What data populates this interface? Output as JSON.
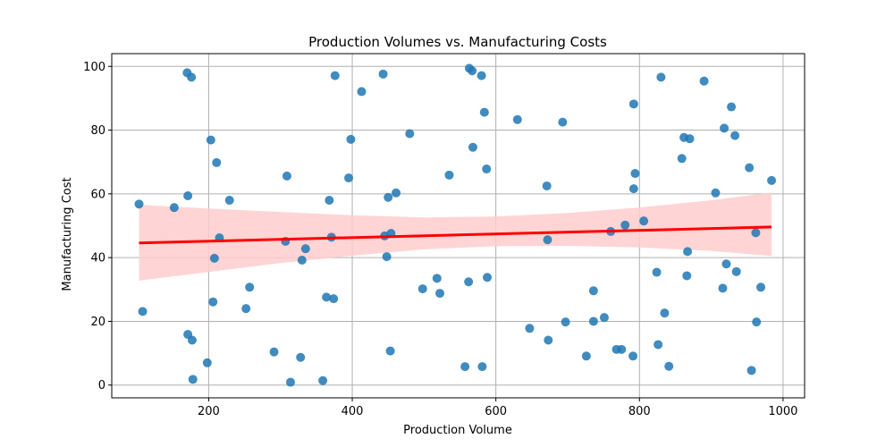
{
  "chart_data": {
    "type": "scatter",
    "title": "Production Volumes vs. Manufacturing Costs",
    "xlabel": "Production Volume",
    "ylabel": "Manufacturing Cost",
    "xlim": [
      65,
      1030
    ],
    "ylim": [
      -4,
      104
    ],
    "xticks": [
      200,
      400,
      600,
      800,
      1000
    ],
    "yticks": [
      0,
      20,
      40,
      60,
      80,
      100
    ],
    "grid": true,
    "colors": {
      "points": "#1f77b4",
      "regression_line": "#ff0000",
      "confidence_band": "#ffcccc",
      "grid": "#b0b0b0"
    },
    "series": [
      {
        "points": [
          [
            103,
            56.8
          ],
          [
            108,
            23.1
          ],
          [
            152,
            55.7
          ],
          [
            170,
            98.0
          ],
          [
            171,
            59.4
          ],
          [
            171,
            15.9
          ],
          [
            176,
            96.6
          ],
          [
            177,
            14.1
          ],
          [
            178,
            1.8
          ],
          [
            198,
            7.0
          ],
          [
            203,
            76.9
          ],
          [
            206,
            26.1
          ],
          [
            208,
            39.8
          ],
          [
            211,
            69.8
          ],
          [
            215,
            46.2
          ],
          [
            229,
            58.0
          ],
          [
            252,
            24.0
          ],
          [
            257,
            30.7
          ],
          [
            291,
            10.4
          ],
          [
            307,
            45.1
          ],
          [
            309,
            65.6
          ],
          [
            314,
            0.9
          ],
          [
            328,
            8.7
          ],
          [
            330,
            39.2
          ],
          [
            335,
            42.8
          ],
          [
            359,
            1.4
          ],
          [
            364,
            27.6
          ],
          [
            368,
            58.0
          ],
          [
            371,
            46.4
          ],
          [
            374,
            27.1
          ],
          [
            376,
            97.1
          ],
          [
            395,
            65.0
          ],
          [
            398,
            77.1
          ],
          [
            413,
            92.1
          ],
          [
            443,
            97.6
          ],
          [
            445,
            46.8
          ],
          [
            448,
            40.3
          ],
          [
            450,
            58.9
          ],
          [
            453,
            10.7
          ],
          [
            454,
            47.6
          ],
          [
            461,
            60.3
          ],
          [
            480,
            78.9
          ],
          [
            498,
            30.2
          ],
          [
            518,
            33.5
          ],
          [
            522,
            28.8
          ],
          [
            535,
            65.9
          ],
          [
            557,
            5.8
          ],
          [
            562,
            32.4
          ],
          [
            563,
            99.4
          ],
          [
            567,
            98.6
          ],
          [
            568,
            74.6
          ],
          [
            580,
            97.1
          ],
          [
            581,
            5.8
          ],
          [
            584,
            85.6
          ],
          [
            587,
            67.8
          ],
          [
            588,
            33.8
          ],
          [
            630,
            83.3
          ],
          [
            647,
            17.8
          ],
          [
            671,
            62.5
          ],
          [
            672,
            45.6
          ],
          [
            673,
            14.1
          ],
          [
            693,
            82.5
          ],
          [
            697,
            19.8
          ],
          [
            726,
            9.1
          ],
          [
            736,
            29.6
          ],
          [
            736,
            20.0
          ],
          [
            751,
            21.2
          ],
          [
            760,
            48.2
          ],
          [
            768,
            11.2
          ],
          [
            775,
            11.2
          ],
          [
            780,
            50.2
          ],
          [
            791,
            9.1
          ],
          [
            792,
            61.6
          ],
          [
            792,
            88.2
          ],
          [
            794,
            66.4
          ],
          [
            806,
            51.5
          ],
          [
            824,
            35.4
          ],
          [
            826,
            12.7
          ],
          [
            830,
            96.6
          ],
          [
            835,
            22.6
          ],
          [
            841,
            5.9
          ],
          [
            859,
            71.1
          ],
          [
            862,
            77.7
          ],
          [
            866,
            34.3
          ],
          [
            867,
            41.9
          ],
          [
            870,
            77.3
          ],
          [
            890,
            95.4
          ],
          [
            906,
            60.3
          ],
          [
            916,
            30.4
          ],
          [
            918,
            80.6
          ],
          [
            921,
            38.0
          ],
          [
            928,
            87.3
          ],
          [
            933,
            78.3
          ],
          [
            935,
            35.6
          ],
          [
            953,
            68.2
          ],
          [
            956,
            4.6
          ],
          [
            962,
            47.8
          ],
          [
            963,
            19.8
          ],
          [
            969,
            30.7
          ],
          [
            984,
            64.2
          ]
        ]
      }
    ],
    "regression": {
      "x_start": 103,
      "y_start": 44.6,
      "x_end": 984,
      "y_end": 49.6,
      "confidence_band": [
        [
          103,
          32.8,
          56.6
        ],
        [
          200,
          35.5,
          55.4
        ],
        [
          300,
          38.3,
          54.3
        ],
        [
          400,
          40.6,
          53.3
        ],
        [
          500,
          42.6,
          52.6
        ],
        [
          600,
          43.6,
          52.9
        ],
        [
          700,
          43.7,
          54.0
        ],
        [
          800,
          43.2,
          55.7
        ],
        [
          900,
          42.1,
          58.0
        ],
        [
          984,
          40.5,
          60.4
        ]
      ]
    }
  }
}
